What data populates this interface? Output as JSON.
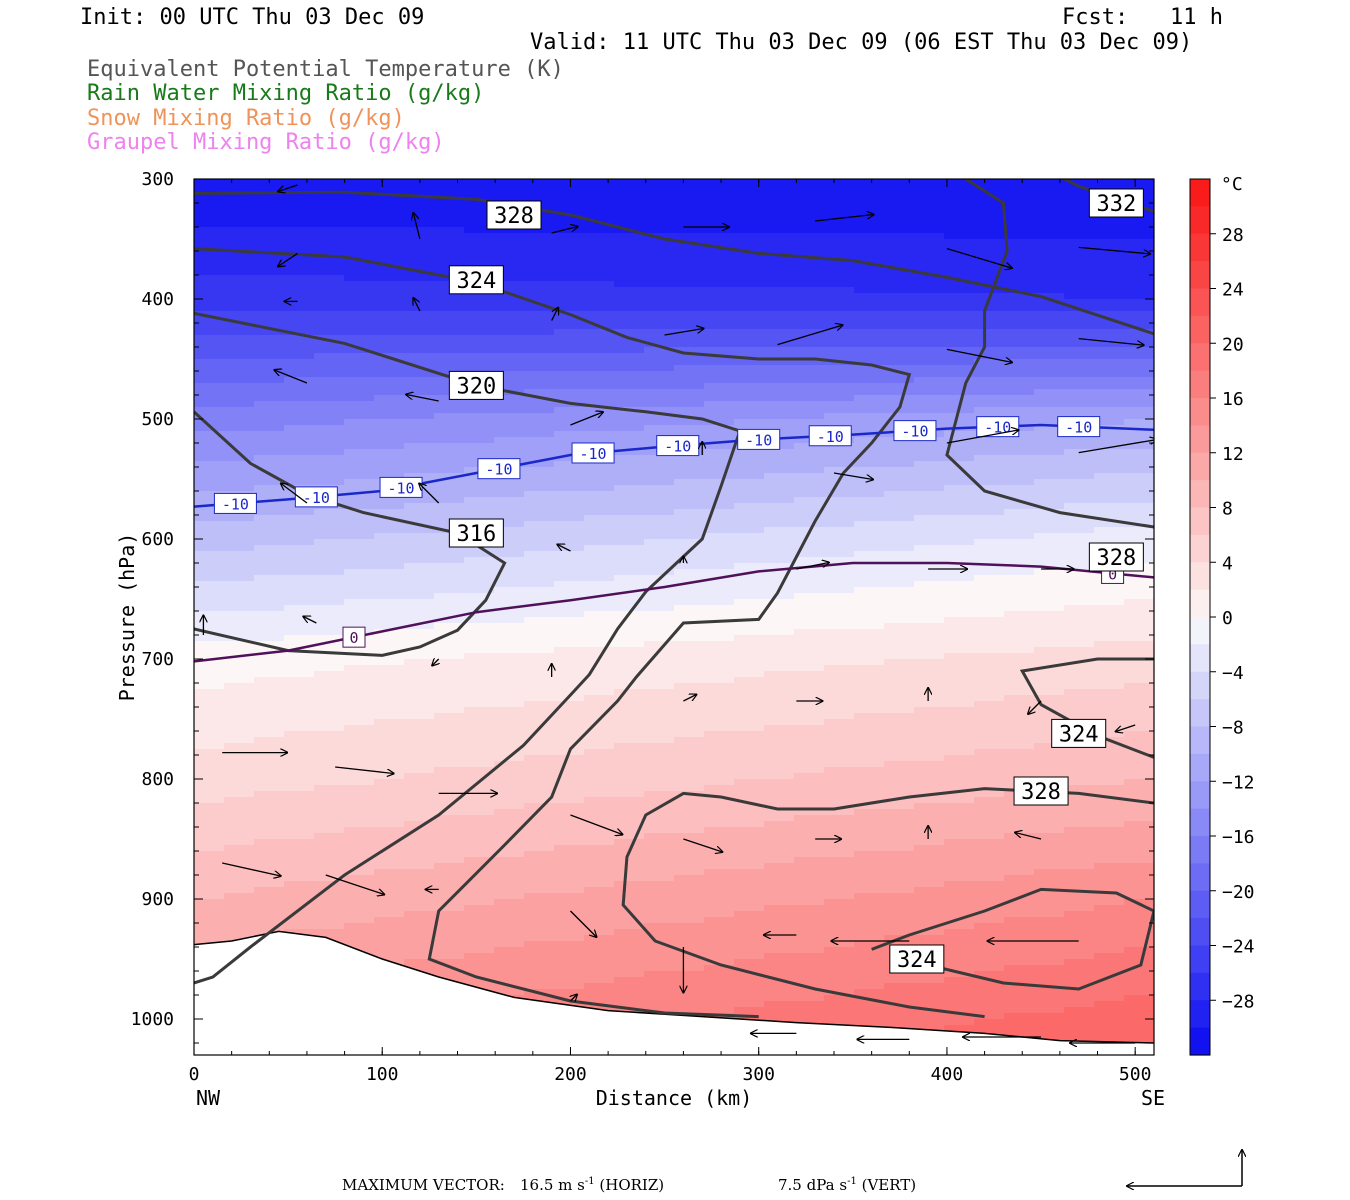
{
  "header": {
    "init": "Init: 00 UTC Thu 03 Dec 09",
    "fcst_label": "Fcst:",
    "fcst_value": "11 h",
    "valid": "Valid: 11 UTC Thu 03 Dec 09 (06 EST Thu 03 Dec 09)"
  },
  "legend": [
    {
      "label": "Equivalent Potential Temperature (K)",
      "color": "#555555"
    },
    {
      "label": "Rain Water Mixing Ratio (g/kg)",
      "color": "#1a7a1a"
    },
    {
      "label": "Snow Mixing Ratio (g/kg)",
      "color": "#f0935a"
    },
    {
      "label": "Graupel Mixing Ratio (g/kg)",
      "color": "#ee82ee"
    }
  ],
  "footer": {
    "max_vector_label": "MAXIMUM VECTOR:",
    "horiz_value": "16.5 m s",
    "horiz_exp": "-1",
    "horiz_tag": "(HORIZ)",
    "vert_value": "7.5 dPa s",
    "vert_exp": "-1",
    "vert_tag": "(VERT)"
  },
  "chart_data": {
    "type": "heatmap",
    "description_free": true,
    "xlabel": "Distance (km)",
    "ylabel": "Pressure (hPa)",
    "x_ticks": [
      0,
      100,
      200,
      300,
      400,
      500
    ],
    "y_ticks": [
      300,
      400,
      500,
      600,
      700,
      800,
      900,
      1000
    ],
    "xlim": [
      0,
      510
    ],
    "ylim": [
      1030,
      300
    ],
    "x_end_labels": {
      "left": "NW",
      "right": "SE"
    },
    "colorbar": {
      "unit": "°C",
      "ticks": [
        28,
        24,
        20,
        16,
        12,
        8,
        4,
        0,
        -4,
        -8,
        -12,
        -16,
        -20,
        -24,
        -28
      ],
      "range": [
        -32,
        32
      ]
    },
    "temperature_profile": {
      "pressure": [
        300,
        400,
        500,
        600,
        700,
        800,
        900,
        1000
      ],
      "temp_left": [
        -31,
        -26,
        -16,
        -8,
        0,
        4,
        9,
        14
      ],
      "temp_right": [
        -31,
        -27,
        -11,
        -2,
        4,
        9,
        15,
        20
      ]
    },
    "isotherms": [
      {
        "label": "-10",
        "color": "#1a28c8",
        "points": [
          [
            0,
            573
          ],
          [
            50,
            567
          ],
          [
            100,
            560
          ],
          [
            150,
            545
          ],
          [
            200,
            530
          ],
          [
            250,
            523
          ],
          [
            300,
            517
          ],
          [
            350,
            513
          ],
          [
            400,
            508
          ],
          [
            450,
            505
          ],
          [
            510,
            509
          ]
        ],
        "label_x": [
          22,
          65,
          110,
          162,
          212,
          257,
          300,
          338,
          383,
          427,
          470
        ]
      },
      {
        "label": "0",
        "color": "#50105a",
        "points": [
          [
            0,
            702
          ],
          [
            50,
            693
          ],
          [
            100,
            677
          ],
          [
            150,
            661
          ],
          [
            200,
            651
          ],
          [
            250,
            640
          ],
          [
            300,
            627
          ],
          [
            350,
            620
          ],
          [
            400,
            620
          ],
          [
            450,
            623
          ],
          [
            510,
            632
          ]
        ],
        "label_x": [
          85,
          488
        ]
      }
    ],
    "theta_e_contours": [
      {
        "label": "328",
        "points": [
          [
            0,
            312
          ],
          [
            80,
            311
          ],
          [
            150,
            317
          ],
          [
            200,
            330
          ],
          [
            250,
            350
          ],
          [
            300,
            362
          ],
          [
            350,
            368
          ],
          [
            400,
            382
          ],
          [
            450,
            398
          ],
          [
            510,
            429
          ]
        ],
        "label_at": [
          170,
          330
        ]
      },
      {
        "label": "324",
        "points": [
          [
            0,
            358
          ],
          [
            80,
            365
          ],
          [
            150,
            386
          ],
          [
            200,
            413
          ],
          [
            230,
            432
          ],
          [
            260,
            445
          ],
          [
            300,
            450
          ],
          [
            330,
            450
          ],
          [
            360,
            455
          ],
          [
            380,
            463
          ],
          [
            375,
            490
          ],
          [
            360,
            520
          ],
          [
            345,
            545
          ],
          [
            330,
            585
          ],
          [
            320,
            615
          ],
          [
            310,
            645
          ],
          [
            300,
            667
          ],
          [
            260,
            670
          ],
          [
            235,
            715
          ],
          [
            225,
            735
          ],
          [
            200,
            775
          ],
          [
            190,
            815
          ],
          [
            165,
            855
          ],
          [
            130,
            910
          ],
          [
            125,
            950
          ],
          [
            150,
            965
          ],
          [
            200,
            985
          ],
          [
            250,
            995
          ],
          [
            300,
            998
          ]
        ],
        "label_at": [
          150,
          384
        ]
      },
      {
        "label": "320",
        "points": [
          [
            0,
            412
          ],
          [
            80,
            437
          ],
          [
            150,
            472
          ],
          [
            200,
            487
          ],
          [
            240,
            494
          ],
          [
            270,
            500
          ],
          [
            290,
            510
          ],
          [
            280,
            556
          ],
          [
            270,
            600
          ],
          [
            240,
            644
          ],
          [
            225,
            675
          ],
          [
            210,
            713
          ],
          [
            200,
            730
          ],
          [
            175,
            772
          ],
          [
            130,
            830
          ],
          [
            80,
            880
          ],
          [
            30,
            940
          ],
          [
            10,
            965
          ],
          [
            0,
            970
          ]
        ],
        "label_at": [
          150,
          472
        ]
      },
      {
        "label": "316",
        "points": [
          [
            0,
            494
          ],
          [
            30,
            537
          ],
          [
            60,
            563
          ],
          [
            90,
            578
          ],
          [
            140,
            595
          ],
          [
            165,
            620
          ],
          [
            155,
            651
          ],
          [
            140,
            676
          ],
          [
            120,
            690
          ],
          [
            100,
            697
          ],
          [
            50,
            693
          ],
          [
            0,
            675
          ]
        ],
        "label_at": [
          150,
          595
        ]
      },
      {
        "label": "332",
        "points": [
          [
            260,
            180
          ],
          [
            300,
            193
          ],
          [
            360,
            229
          ],
          [
            410,
            258
          ],
          [
            440,
            282
          ],
          [
            470,
            306
          ],
          [
            510,
            327
          ]
        ],
        "label_at": [
          490,
          320
        ]
      },
      {
        "label": "332b",
        "points": [
          [
            400,
            290
          ],
          [
            430,
            320
          ],
          [
            432,
            360
          ],
          [
            420,
            410
          ],
          [
            420,
            440
          ],
          [
            410,
            470
          ],
          [
            400,
            530
          ],
          [
            420,
            560
          ],
          [
            460,
            578
          ],
          [
            510,
            590
          ]
        ],
        "label_at": [
          490,
          615
        ]
      },
      {
        "label": "324b",
        "points": [
          [
            510,
            700
          ],
          [
            480,
            700
          ],
          [
            440,
            710
          ],
          [
            450,
            738
          ],
          [
            480,
            764
          ],
          [
            510,
            782
          ]
        ],
        "label_at": [
          470,
          762
        ]
      },
      {
        "label": "328b",
        "points": [
          [
            510,
            820
          ],
          [
            470,
            812
          ],
          [
            420,
            808
          ],
          [
            380,
            815
          ],
          [
            340,
            825
          ],
          [
            310,
            825
          ],
          [
            280,
            815
          ],
          [
            260,
            812
          ],
          [
            240,
            830
          ],
          [
            230,
            865
          ],
          [
            228,
            905
          ],
          [
            245,
            935
          ],
          [
            280,
            955
          ],
          [
            330,
            975
          ],
          [
            380,
            990
          ],
          [
            420,
            998
          ]
        ],
        "label_at": [
          450,
          810
        ]
      },
      {
        "label": "332c",
        "points": [
          [
            360,
            942
          ],
          [
            380,
            930
          ],
          [
            420,
            910
          ],
          [
            450,
            892
          ],
          [
            490,
            895
          ],
          [
            510,
            910
          ],
          [
            503,
            955
          ],
          [
            470,
            975
          ],
          [
            430,
            970
          ],
          [
            390,
            955
          ],
          [
            370,
            950
          ]
        ],
        "label_at": [
          384,
          950
        ]
      }
    ],
    "theta_e_labels_shown": [
      "328",
      "324",
      "320",
      "316",
      "332",
      "328",
      "324",
      "328",
      "324",
      "332"
    ],
    "wind_vectors": [
      [
        100,
        215,
        -4,
        0
      ],
      [
        90,
        232,
        -2,
        0
      ],
      [
        180,
        250,
        4,
        0
      ],
      [
        255,
        255,
        3,
        0
      ],
      [
        315,
        262,
        10,
        4
      ],
      [
        380,
        258,
        10,
        5
      ],
      [
        470,
        250,
        11,
        4
      ],
      [
        55,
        305,
        -3,
        -1
      ],
      [
        120,
        298,
        0,
        2
      ],
      [
        200,
        287,
        4,
        0
      ],
      [
        270,
        285,
        7,
        0
      ],
      [
        330,
        283,
        10,
        3
      ],
      [
        400,
        288,
        9,
        -1
      ],
      [
        470,
        288,
        10,
        0
      ],
      [
        55,
        362,
        -3,
        -2
      ],
      [
        120,
        350,
        -1,
        4
      ],
      [
        190,
        345,
        4,
        1
      ],
      [
        260,
        340,
        7,
        0
      ],
      [
        330,
        335,
        9,
        1
      ],
      [
        400,
        358,
        10,
        -3
      ],
      [
        470,
        357,
        11,
        -1
      ],
      [
        55,
        402,
        -2,
        0
      ],
      [
        120,
        410,
        -1,
        2
      ],
      [
        190,
        418,
        1,
        2
      ],
      [
        250,
        430,
        6,
        1
      ],
      [
        310,
        438,
        10,
        3
      ],
      [
        400,
        442,
        10,
        -2
      ],
      [
        470,
        433,
        10,
        -1
      ],
      [
        60,
        470,
        -5,
        2
      ],
      [
        130,
        485,
        -5,
        1
      ],
      [
        200,
        505,
        5,
        2
      ],
      [
        270,
        530,
        0,
        2
      ],
      [
        340,
        545,
        6,
        -1
      ],
      [
        400,
        520,
        11,
        2
      ],
      [
        470,
        528,
        12,
        2
      ],
      [
        60,
        570,
        -4,
        3
      ],
      [
        130,
        570,
        -3,
        3
      ],
      [
        200,
        610,
        -2,
        1
      ],
      [
        260,
        620,
        0,
        1
      ],
      [
        320,
        625,
        5,
        1
      ],
      [
        390,
        625,
        6,
        0
      ],
      [
        450,
        625,
        5,
        0
      ],
      [
        5,
        680,
        0,
        3
      ],
      [
        65,
        670,
        -2,
        1
      ],
      [
        130,
        700,
        -1,
        -1
      ],
      [
        190,
        715,
        0,
        2
      ],
      [
        260,
        735,
        2,
        1
      ],
      [
        320,
        735,
        4,
        0
      ],
      [
        390,
        735,
        0,
        2
      ],
      [
        450,
        735,
        -2,
        -2
      ],
      [
        500,
        755,
        -3,
        -1
      ],
      [
        15,
        778,
        10,
        0
      ],
      [
        75,
        790,
        9,
        -1
      ],
      [
        130,
        812,
        9,
        0
      ],
      [
        200,
        830,
        8,
        -3
      ],
      [
        260,
        850,
        6,
        -2
      ],
      [
        330,
        850,
        4,
        0
      ],
      [
        390,
        850,
        0,
        2
      ],
      [
        450,
        850,
        -4,
        1
      ],
      [
        15,
        870,
        9,
        -2
      ],
      [
        70,
        880,
        9,
        -3
      ],
      [
        130,
        892,
        -2,
        0
      ],
      [
        200,
        910,
        4,
        -4
      ],
      [
        260,
        940,
        0,
        -7
      ],
      [
        320,
        930,
        -5,
        0
      ],
      [
        380,
        935,
        -12,
        0
      ],
      [
        470,
        935,
        -14,
        0
      ],
      [
        200,
        985,
        1,
        1
      ],
      [
        320,
        1012,
        -7,
        0
      ],
      [
        380,
        1017,
        -8,
        0
      ],
      [
        450,
        1015,
        -12,
        0
      ],
      [
        500,
        1020,
        -10,
        0
      ]
    ]
  }
}
